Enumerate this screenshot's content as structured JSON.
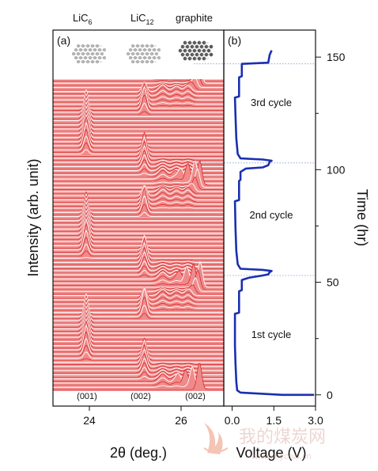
{
  "chart_data": [
    {
      "panel": "(a)",
      "type": "line",
      "xlabel": "2θ (deg.)",
      "ylabel": "Intensity (arb. unit)",
      "xticks": [
        "24",
        "26"
      ],
      "structures": [
        {
          "label": "LiC",
          "sub": "6",
          "icon": "lic6-lattice-icon"
        },
        {
          "label": "LiC",
          "sub": "12",
          "icon": "lic12-lattice-icon"
        },
        {
          "label": "graphite",
          "sub": "",
          "icon": "graphite-lattice-icon"
        }
      ],
      "peak_labels": [
        "(001)",
        "(002)",
        "(002)"
      ],
      "peak_positions_deg": [
        23.9,
        25.2,
        26.4
      ],
      "color_fill": "#f08a8a",
      "color_stroke": "#d42020"
    },
    {
      "panel": "(b)",
      "type": "line",
      "xlabel": "Voltage (V)",
      "ylabel": "Time (hr)",
      "xticks": [
        "0.0",
        "1.5",
        "3.0"
      ],
      "yticks": [
        "0",
        "50",
        "100",
        "150"
      ],
      "xlim": [
        -0.3,
        3.0
      ],
      "ylim": [
        -5,
        162
      ],
      "cycle_labels": [
        {
          "text": "1st cycle",
          "time": 27
        },
        {
          "text": "2nd cycle",
          "time": 80
        },
        {
          "text": "3rd cycle",
          "time": 130
        }
      ],
      "series": [
        {
          "color": "#1a2fb0",
          "points": [
            [
              2.95,
              0
            ],
            [
              1.8,
              0
            ],
            [
              0.3,
              1
            ],
            [
              0.18,
              2
            ],
            [
              0.15,
              6
            ],
            [
              0.12,
              14
            ],
            [
              0.1,
              22
            ],
            [
              0.1,
              36
            ],
            [
              0.25,
              36.5
            ],
            [
              0.25,
              46
            ],
            [
              0.35,
              46.5
            ],
            [
              0.35,
              51
            ],
            [
              0.6,
              52
            ],
            [
              1.1,
              53
            ],
            [
              1.3,
              53.5
            ],
            [
              1.35,
              54.5
            ],
            [
              1.42,
              55
            ],
            [
              1.1,
              55.5
            ],
            [
              0.3,
              56
            ],
            [
              0.2,
              58
            ],
            [
              0.15,
              64
            ],
            [
              0.12,
              74
            ],
            [
              0.1,
              86
            ],
            [
              0.25,
              86.5
            ],
            [
              0.25,
              95
            ],
            [
              0.3,
              95.5
            ],
            [
              0.3,
              99
            ],
            [
              0.5,
              100.5
            ],
            [
              1.1,
              101
            ],
            [
              1.3,
              102
            ],
            [
              1.35,
              103.5
            ],
            [
              1.42,
              104
            ],
            [
              1.1,
              104.5
            ],
            [
              0.3,
              105
            ],
            [
              0.2,
              107
            ],
            [
              0.15,
              114
            ],
            [
              0.12,
              124
            ],
            [
              0.1,
              132
            ],
            [
              0.25,
              132.5
            ],
            [
              0.25,
              141
            ],
            [
              0.35,
              141.5
            ],
            [
              0.35,
              147
            ],
            [
              1.3,
              147.5
            ],
            [
              1.35,
              151
            ],
            [
              1.42,
              153
            ]
          ]
        }
      ],
      "guide_times": [
        53,
        103,
        147
      ]
    }
  ]
}
